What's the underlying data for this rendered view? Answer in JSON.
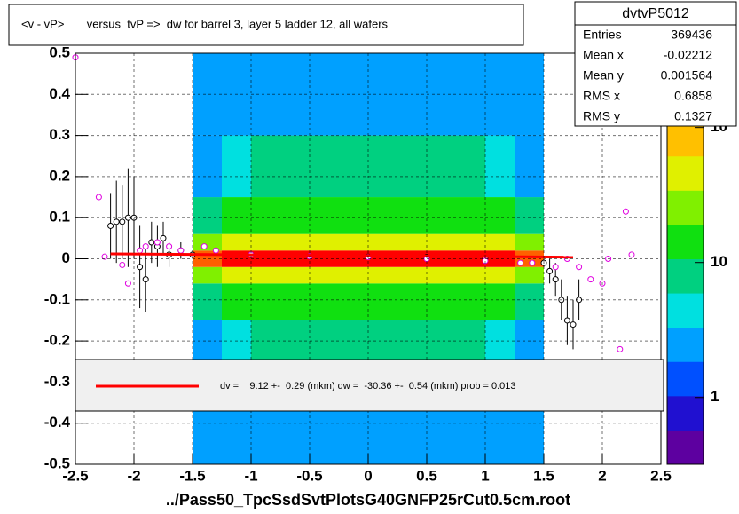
{
  "chart_data": {
    "type": "heatmap",
    "title": "<v - vP>       versus  tvP =>  dw for barrel 3, layer 5 ladder 12, all wafers",
    "x_label": "../Pass50_TpcSsdSvtPlotsG40GNFP25rCut0.5cm.root",
    "xlim": [
      -2.5,
      2.5
    ],
    "xticks": [
      -2.5,
      -2,
      -1.5,
      -1,
      -0.5,
      0,
      0.5,
      1,
      1.5,
      2,
      2.5
    ],
    "ylim": [
      -0.5,
      0.5
    ],
    "yticks": [
      -0.5,
      -0.4,
      -0.3,
      -0.2,
      -0.1,
      0,
      0.1,
      0.2,
      0.3,
      0.4,
      0.5
    ],
    "grid": true,
    "xbins": [
      -1.5,
      -1.25,
      -1,
      -0.75,
      -0.5,
      -0.25,
      0,
      0.25,
      0.5,
      0.75,
      1,
      1.25,
      1.5
    ],
    "ybins": [
      -0.5,
      -0.3,
      -0.15,
      -0.06,
      -0.02,
      0.02,
      0.06,
      0.15,
      0.3,
      0.5
    ],
    "z": [
      [
        2,
        2,
        3,
        3,
        3,
        3,
        3,
        3,
        3,
        3,
        2,
        2
      ],
      [
        3,
        5,
        6,
        6,
        6,
        6,
        6,
        6,
        6,
        6,
        5,
        3
      ],
      [
        7,
        12,
        15,
        15,
        15,
        15,
        15,
        15,
        15,
        15,
        12,
        7
      ],
      [
        30,
        48,
        60,
        60,
        60,
        60,
        60,
        60,
        60,
        60,
        48,
        30
      ],
      [
        120,
        200,
        250,
        250,
        250,
        250,
        250,
        250,
        250,
        250,
        200,
        120
      ],
      [
        30,
        48,
        60,
        60,
        60,
        60,
        60,
        60,
        60,
        60,
        48,
        30
      ],
      [
        7,
        12,
        15,
        15,
        15,
        15,
        15,
        15,
        15,
        15,
        12,
        7
      ],
      [
        3,
        5,
        6,
        6,
        6,
        6,
        6,
        6,
        6,
        6,
        5,
        3
      ],
      [
        2,
        2,
        3,
        3,
        3,
        3,
        3,
        3,
        3,
        3,
        2,
        2
      ]
    ],
    "zlim": [
      0.32,
      355
    ],
    "zlog": true,
    "zticks": [
      1,
      10,
      {
        "value": 100,
        "label": "10²"
      }
    ],
    "palette": [
      "#5d00a0",
      "#2010d0",
      "#0050ff",
      "#00a0ff",
      "#00e0e0",
      "#00d080",
      "#10e010",
      "#80f000",
      "#e0f000",
      "#ffc000",
      "#ff6000",
      "#ff0000"
    ],
    "series": [
      {
        "type": "scatter",
        "color": "#000000",
        "x": [
          -2.2,
          -2.15,
          -2.1,
          -2.05,
          -2.0,
          -1.95,
          -1.9,
          -1.85,
          -1.8,
          -1.75,
          -1.7,
          -1.6,
          -1.5,
          -1.0,
          -0.5,
          0,
          0.5,
          1.0,
          1.5,
          1.55,
          1.6,
          1.65,
          1.7,
          1.75,
          1.8
        ],
        "values": [
          0.08,
          0.09,
          0.09,
          0.1,
          0.1,
          -0.02,
          -0.05,
          0.04,
          0.03,
          0.05,
          0.01,
          0.02,
          0.01,
          0.01,
          0.006,
          0.005,
          0.004,
          0.002,
          -0.01,
          -0.03,
          -0.05,
          -0.1,
          -0.15,
          -0.16,
          -0.1
        ],
        "errors": [
          0.08,
          0.1,
          0.09,
          0.12,
          0.1,
          0.1,
          0.08,
          0.05,
          0.05,
          0.04,
          0.03,
          0.02,
          0.01,
          0.002,
          0.001,
          0.001,
          0.001,
          0.002,
          0.01,
          0.03,
          0.04,
          0.05,
          0.06,
          0.06,
          0.05
        ]
      },
      {
        "type": "scatter",
        "color": "#e000e0",
        "x": [
          -2.5,
          -2.3,
          -2.25,
          -2.1,
          -2.05,
          -1.95,
          -1.9,
          -1.8,
          -1.7,
          -1.6,
          -1.4,
          -1.3,
          -1.0,
          -0.5,
          0,
          0.5,
          1.0,
          1.3,
          1.4,
          1.6,
          1.7,
          1.8,
          1.9,
          2.0,
          2.05,
          2.15,
          2.2,
          2.25
        ],
        "values": [
          0.49,
          0.15,
          0.005,
          -0.015,
          -0.06,
          0.02,
          0.03,
          0.04,
          0.03,
          0.02,
          0.03,
          0.02,
          0.01,
          0.006,
          0.004,
          0.0,
          -0.005,
          -0.01,
          -0.01,
          -0.02,
          0.0,
          -0.02,
          -0.05,
          -0.06,
          0.0,
          -0.22,
          0.115,
          0.01
        ]
      }
    ],
    "fit": {
      "type": "line",
      "color": "#ff0000",
      "x": [
        -2.2,
        1.75
      ],
      "values": [
        0.012,
        0.004
      ]
    },
    "fit_label": "dv =    9.12 +-  0.29 (mkm) dw =  -30.36 +-  0.54 (mkm) prob = 0.013",
    "stats": {
      "title": "dvtvP5012",
      "rows": [
        [
          "Entries",
          369436
        ],
        [
          "Mean x",
          -0.02212
        ],
        [
          "Mean y",
          0.001564
        ],
        [
          "RMS x",
          0.6858
        ],
        [
          "RMS y",
          0.1327
        ]
      ]
    }
  }
}
